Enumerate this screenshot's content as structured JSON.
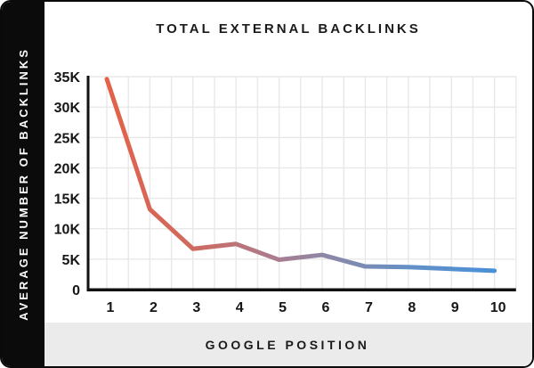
{
  "title": "TOTAL EXTERNAL BACKLINKS",
  "y_axis_label": "AVERAGE NUMBER OF BACKLINKS",
  "x_axis_label": "GOOGLE POSITION",
  "colors": {
    "card_border": "#0a0a0a",
    "sidebar_bg": "#0b0b0b",
    "sidebar_text": "#ffffff",
    "footer_band_bg": "#ebebeb",
    "gridline": "#e8e8e8",
    "axis": "#111111",
    "tick_text": "#161616",
    "line_start_red": "#e2624a",
    "line_end_blue": "#4a90d8"
  },
  "chart_data": {
    "type": "line",
    "title": "TOTAL EXTERNAL BACKLINKS",
    "xlabel": "GOOGLE POSITION",
    "ylabel": "AVERAGE NUMBER OF BACKLINKS",
    "x": [
      1,
      2,
      3,
      4,
      5,
      6,
      7,
      8,
      9,
      10
    ],
    "values": [
      34600,
      13200,
      6700,
      7500,
      4900,
      5700,
      3800,
      3700,
      3400,
      3100
    ],
    "x_ticks": [
      "1",
      "2",
      "3",
      "4",
      "5",
      "6",
      "7",
      "8",
      "9",
      "10"
    ],
    "y_ticks": [
      "0",
      "5K",
      "10K",
      "15K",
      "20K",
      "25K",
      "30K",
      "35K"
    ],
    "y_tick_values": [
      0,
      5000,
      10000,
      15000,
      20000,
      25000,
      30000,
      35000
    ],
    "ylim": [
      0,
      35000
    ],
    "xlim": [
      1,
      10
    ],
    "grid": true,
    "legend": false,
    "line_width": 5,
    "line_gradient_stops": [
      {
        "offset": 0.0,
        "color": "#e2624a"
      },
      {
        "offset": 0.22,
        "color": "#cf6a5e"
      },
      {
        "offset": 0.42,
        "color": "#ad7b8c"
      },
      {
        "offset": 0.56,
        "color": "#8e87a6"
      },
      {
        "offset": 0.78,
        "color": "#6390c6"
      },
      {
        "offset": 1.0,
        "color": "#4a90d8"
      }
    ]
  }
}
